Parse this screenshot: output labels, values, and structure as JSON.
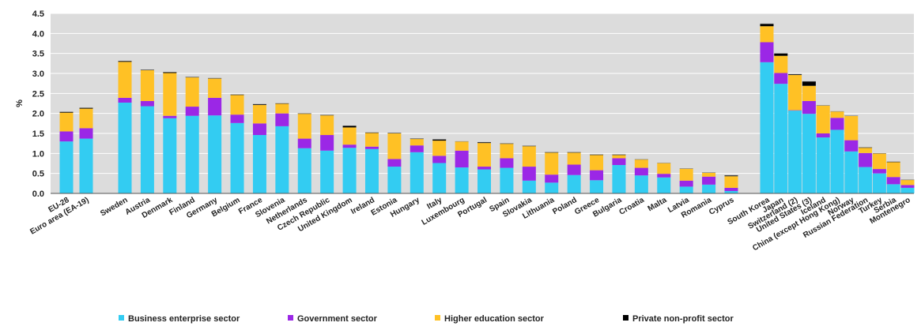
{
  "chart_data": {
    "type": "bar",
    "stacked": true,
    "ylabel": "%",
    "ylim": [
      0,
      4.5
    ],
    "yticks": [
      "0.0",
      "0.5",
      "1.0",
      "1.5",
      "2.0",
      "2.5",
      "3.0",
      "3.5",
      "4.0",
      "4.5"
    ],
    "grid": true,
    "legend_placement": "bottom",
    "categories": [
      "EU-28",
      "Euro area (EA-19)",
      "Sweden",
      "Austria",
      "Denmark",
      "Finland",
      "Germany",
      "Belgium",
      "France",
      "Slovenia",
      "Netherlands",
      "Czech Republic",
      "United Kingdom",
      "Ireland",
      "Estonia",
      "Hungary",
      "Italy",
      "Luxembourg",
      "Portugal",
      "Spain",
      "Slovakia",
      "Lithuania",
      "Poland",
      "Greece",
      "Bulgaria",
      "Croatia",
      "Malta",
      "Latvia",
      "Romania",
      "Cyprus",
      "South Korea",
      "Japan",
      "Switzerland (2)",
      "United States (3)",
      "Iceland",
      "China (except Hong Kong)",
      "Norway",
      "Russian Federation",
      "Turkey",
      "Serbia",
      "Montenegro"
    ],
    "series": [
      {
        "name": "Business enterprise sector",
        "color": "#33CCF2",
        "values": [
          1.3,
          1.37,
          2.27,
          2.18,
          1.88,
          1.94,
          1.95,
          1.76,
          1.46,
          1.68,
          1.13,
          1.07,
          1.14,
          1.11,
          0.67,
          1.03,
          0.76,
          0.65,
          0.6,
          0.64,
          0.32,
          0.27,
          0.46,
          0.33,
          0.71,
          0.45,
          0.4,
          0.17,
          0.22,
          0.06,
          3.28,
          2.74,
          2.07,
          1.99,
          1.4,
          1.59,
          1.05,
          0.66,
          0.5,
          0.23,
          0.14
        ]
      },
      {
        "name": "Government sector",
        "color": "#9B27E6",
        "values": [
          0.25,
          0.26,
          0.12,
          0.13,
          0.06,
          0.23,
          0.44,
          0.21,
          0.29,
          0.32,
          0.24,
          0.39,
          0.08,
          0.06,
          0.19,
          0.17,
          0.18,
          0.42,
          0.07,
          0.24,
          0.35,
          0.2,
          0.26,
          0.25,
          0.17,
          0.19,
          0.09,
          0.15,
          0.2,
          0.08,
          0.5,
          0.27,
          0.01,
          0.32,
          0.1,
          0.3,
          0.28,
          0.35,
          0.11,
          0.18,
          0.07
        ]
      },
      {
        "name": "Higher education sector",
        "color": "#FFC125",
        "values": [
          0.47,
          0.49,
          0.9,
          0.77,
          1.07,
          0.73,
          0.48,
          0.49,
          0.46,
          0.24,
          0.62,
          0.49,
          0.43,
          0.34,
          0.64,
          0.16,
          0.38,
          0.23,
          0.59,
          0.36,
          0.51,
          0.55,
          0.3,
          0.38,
          0.08,
          0.21,
          0.27,
          0.3,
          0.1,
          0.29,
          0.4,
          0.43,
          0.88,
          0.38,
          0.7,
          0.16,
          0.61,
          0.13,
          0.39,
          0.37,
          0.13
        ]
      },
      {
        "name": "Private non-profit sector",
        "color": "#000000",
        "values": [
          0.02,
          0.02,
          0.02,
          0.01,
          0.02,
          0.01,
          0.01,
          0.01,
          0.02,
          0.01,
          0.01,
          0.01,
          0.04,
          0.01,
          0.01,
          0.01,
          0.03,
          0.0,
          0.02,
          0.01,
          0.01,
          0.01,
          0.01,
          0.01,
          0.01,
          0.0,
          0.0,
          0.0,
          0.0,
          0.02,
          0.06,
          0.06,
          0.02,
          0.11,
          0.0,
          0.0,
          0.0,
          0.01,
          0.0,
          0.01,
          0.0
        ]
      }
    ]
  }
}
